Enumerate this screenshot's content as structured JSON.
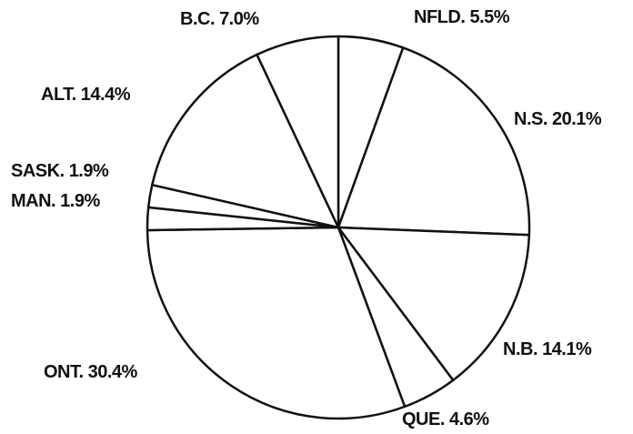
{
  "chart_data": {
    "type": "pie",
    "categories": [
      "NFLD.",
      "N.S.",
      "N.B.",
      "QUE.",
      "ONT.",
      "MAN.",
      "SASK.",
      "ALT.",
      "B.C."
    ],
    "values": [
      5.5,
      20.1,
      14.1,
      4.6,
      30.4,
      1.9,
      1.9,
      14.4,
      7.0
    ],
    "value_labels": [
      "5.5%",
      "20.1%",
      "14.1%",
      "4.6%",
      "30.4%",
      "1.9%",
      "1.9%",
      "14.4%",
      "7.0%"
    ],
    "color": "#ffffff",
    "stroke": "#111111"
  }
}
